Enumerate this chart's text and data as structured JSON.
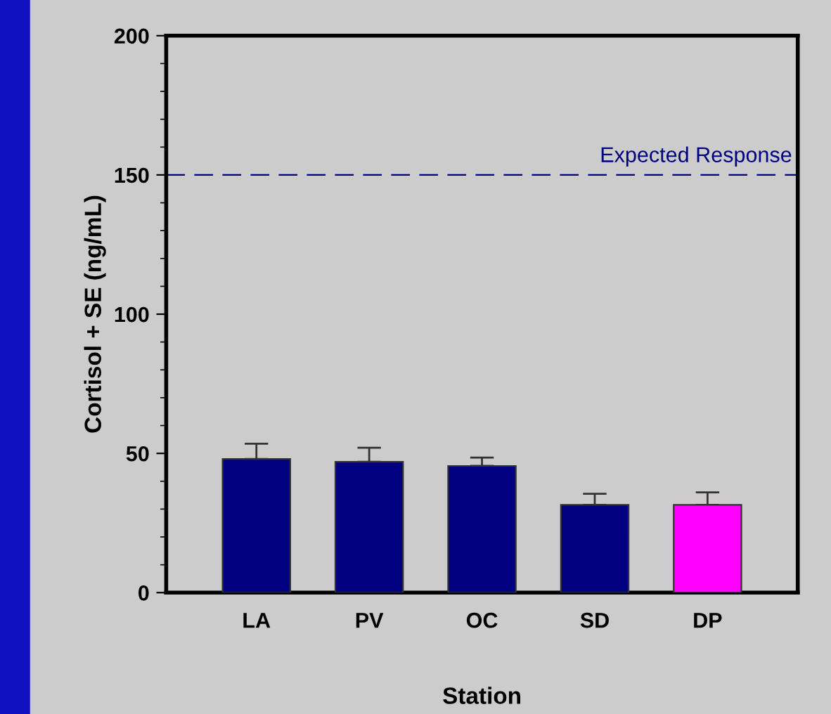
{
  "chart_data": {
    "type": "bar",
    "xlabel": "Station",
    "ylabel": "Cortisol + SE (ng/mL)",
    "categories": [
      "LA",
      "PV",
      "OC",
      "SD",
      "DP"
    ],
    "values": [
      48,
      47,
      45.5,
      31.5,
      31.5
    ],
    "colors": [
      "#000080",
      "#000080",
      "#000080",
      "#000080",
      "#ff00ff"
    ],
    "errors": [
      [
        48,
        53.5
      ],
      [
        47,
        52
      ],
      [
        45.5,
        48.5
      ],
      [
        31.5,
        35.5
      ],
      [
        31.5,
        36
      ]
    ],
    "ylim": [
      0,
      200
    ],
    "yticks": [
      0,
      50,
      100,
      150,
      200
    ],
    "grid": false,
    "legend": false,
    "ref_lines": [
      {
        "axis": "y",
        "value": 150,
        "label": "Expected Response",
        "color": "#000080",
        "line_style": "dashed"
      }
    ]
  }
}
